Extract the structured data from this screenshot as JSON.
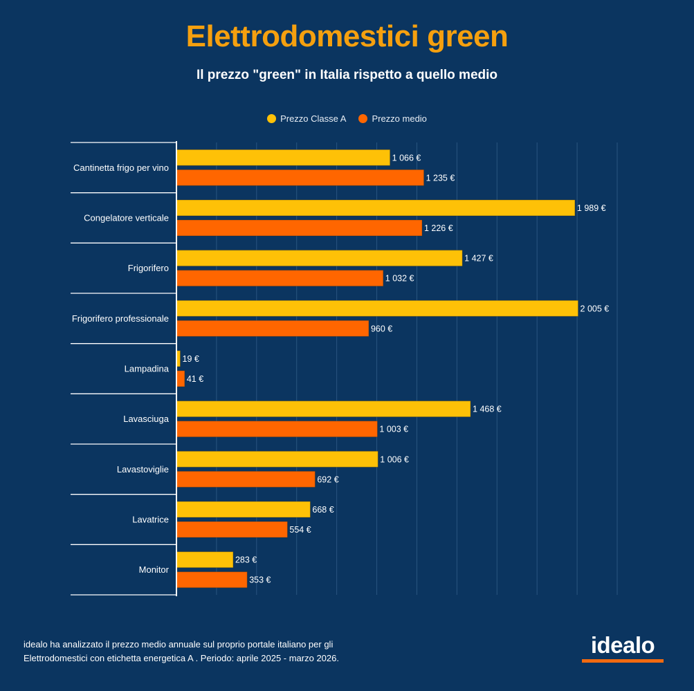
{
  "header": {
    "title": "Elettrodomestici green",
    "subtitle": "Il prezzo \"green\" in Italia rispetto a quello medio"
  },
  "colors": {
    "background": "#0b3560",
    "title": "#f5a00f",
    "series_a": "#fec107",
    "series_b": "#ff6600",
    "gridline": "#2a5580",
    "logo_bar": "#f26a10"
  },
  "chart_data": {
    "type": "bar",
    "orientation": "horizontal",
    "title": "Elettrodomestici green",
    "subtitle": "Il prezzo \"green\" in Italia rispetto a quello medio",
    "xlabel": "",
    "ylabel": "",
    "xlim": [
      0,
      2200
    ],
    "grid_step": 200,
    "grid": true,
    "legend_position": "top-center",
    "categories": [
      "Cantinetta frigo per vino",
      "Congelatore verticale",
      "Frigorifero",
      "Frigorifero professionale",
      "Lampadina",
      "Lavasciuga",
      "Lavastoviglie",
      "Lavatrice",
      "Monitor"
    ],
    "series": [
      {
        "name": "Prezzo Classe A",
        "color": "#fec107",
        "values": [
          1066,
          1989,
          1427,
          2005,
          19,
          1468,
          1006,
          668,
          283
        ],
        "labels": [
          "1 066 €",
          "1 989 €",
          "1 427 €",
          "2 005 €",
          "19 €",
          "1 468 €",
          "1 006 €",
          "668 €",
          "283 €"
        ]
      },
      {
        "name": "Prezzo medio",
        "color": "#ff6600",
        "values": [
          1235,
          1226,
          1032,
          960,
          41,
          1003,
          692,
          554,
          353
        ],
        "labels": [
          "1 235 €",
          "1 226 €",
          "1 032 €",
          "960 €",
          "41 €",
          "1 003 €",
          "692 €",
          "554 €",
          "353 €"
        ]
      }
    ]
  },
  "footer": {
    "note_line1": "idealo ha analizzato il prezzo medio annuale sul proprio portale italiano per gli",
    "note_line2": "Elettrodomestici con etichetta energetica A . Periodo: aprile 2025 - marzo 2026.",
    "logo_text": "idealo"
  }
}
